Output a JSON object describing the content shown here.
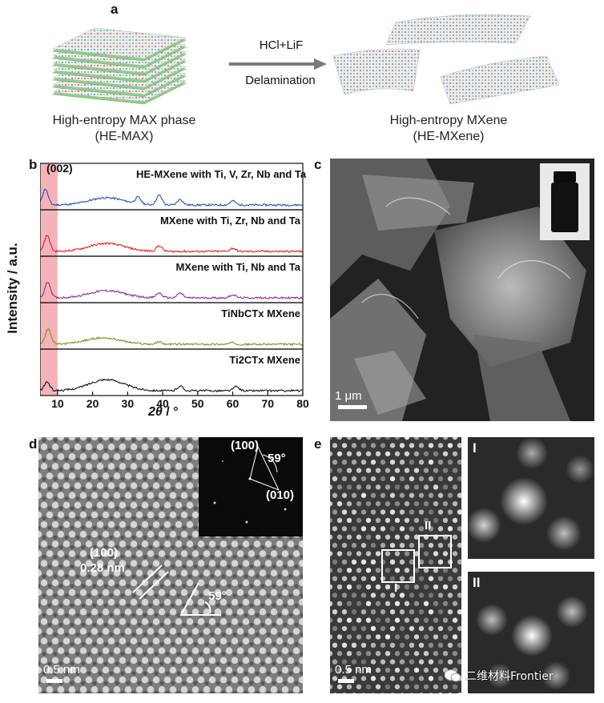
{
  "panel_labels": {
    "a": "a",
    "b": "b",
    "c": "c",
    "d": "d",
    "e": "e"
  },
  "panel_a": {
    "arrow_top": "HCl+LiF",
    "arrow_bottom": "Delamination",
    "left_caption_1": "High-entropy MAX phase",
    "left_caption_2": "(HE-MAX)",
    "right_caption_1": "High-entropy MXene",
    "right_caption_2": "(HE-MXene)"
  },
  "panel_b": {
    "peak_label": "(002)",
    "ylabel": "Intensity / a.u.",
    "xlabel_main": "2θ",
    "xlabel_unit": " / °",
    "highlight_color": "#f4b3b9"
  },
  "chart_data": {
    "type": "line",
    "xlim": [
      5,
      80
    ],
    "x_ticks": [
      10,
      20,
      30,
      40,
      50,
      60,
      70,
      80
    ],
    "highlight_range": [
      5,
      10
    ],
    "series": [
      {
        "name": "HE-MXene with Ti, V, Zr, Nb and Ta",
        "color": "#2a4fb3",
        "peaks": [
          [
            6.5,
            1.0
          ],
          [
            24,
            0.45
          ],
          [
            33,
            0.4
          ],
          [
            39,
            0.6
          ],
          [
            45,
            0.35
          ],
          [
            60,
            0.25
          ]
        ]
      },
      {
        "name": "MXene with Ti, Zr, Nb and Ta",
        "color": "#e02020",
        "peaks": [
          [
            7,
            1.0
          ],
          [
            24,
            0.5
          ],
          [
            39,
            0.35
          ],
          [
            60,
            0.2
          ]
        ]
      },
      {
        "name": "MXene with Ti, Nb and Ta",
        "color": "#8a2d8f",
        "peaks": [
          [
            7.2,
            1.0
          ],
          [
            24,
            0.45
          ],
          [
            39,
            0.3
          ],
          [
            45,
            0.3
          ],
          [
            60,
            0.2
          ]
        ]
      },
      {
        "name": "TiNbCTx MXene",
        "color": "#8a8a2e",
        "peaks": [
          [
            7.3,
            1.0
          ],
          [
            23,
            0.4
          ],
          [
            39,
            0.15
          ],
          [
            60,
            0.1
          ]
        ]
      },
      {
        "name": "Ti2CTx MXene",
        "color": "#111111",
        "peaks": [
          [
            7,
            0.55
          ],
          [
            24,
            0.7
          ],
          [
            45,
            0.3
          ],
          [
            61,
            0.25
          ]
        ]
      }
    ]
  },
  "panel_c": {
    "scale_label": "1 μm"
  },
  "panel_d": {
    "fft_100": "(100)",
    "fft_010": "(010)",
    "fft_angle": "59°",
    "plane_label": "(100)",
    "spacing_label": "0.28 nm",
    "angle_label": "59°",
    "scale_label": "0.5 nm"
  },
  "panel_e": {
    "box1": "I",
    "box2": "II",
    "inset1": "I",
    "inset2": "II",
    "scale_label": "0.5 nm",
    "watermark": "二维材料Frontier"
  }
}
